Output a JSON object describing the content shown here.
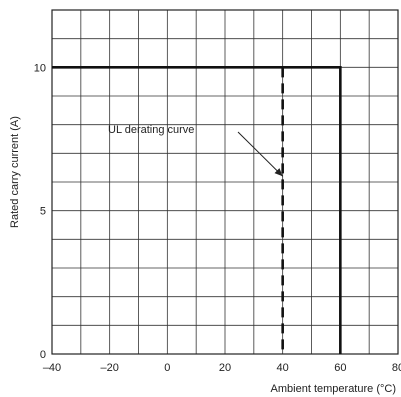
{
  "chart_data": {
    "type": "line",
    "title": "",
    "xlabel": "Ambient temperature (°C)",
    "ylabel": "Rated carry current (A)",
    "xlim": [
      -40,
      80
    ],
    "ylim": [
      0,
      12
    ],
    "x_ticks": [
      -40,
      -20,
      0,
      20,
      40,
      60,
      80
    ],
    "x_tick_labels": [
      "–40",
      "–20",
      "0",
      "20",
      "40",
      "60",
      "80"
    ],
    "y_ticks": [
      0,
      5,
      10
    ],
    "y_tick_labels": [
      "0",
      "5",
      "10"
    ],
    "grid": true,
    "x_grid_step": 10,
    "y_grid_step": 1,
    "series": [
      {
        "style": "solid",
        "x": [
          -40,
          60,
          60
        ],
        "y": [
          10,
          10,
          0
        ]
      },
      {
        "style": "dashed",
        "x": [
          40,
          40
        ],
        "y": [
          10,
          0
        ]
      }
    ],
    "annotations": [
      {
        "text": "UL derating curve",
        "points_to": {
          "x": 40,
          "y": 6.2
        }
      }
    ]
  }
}
